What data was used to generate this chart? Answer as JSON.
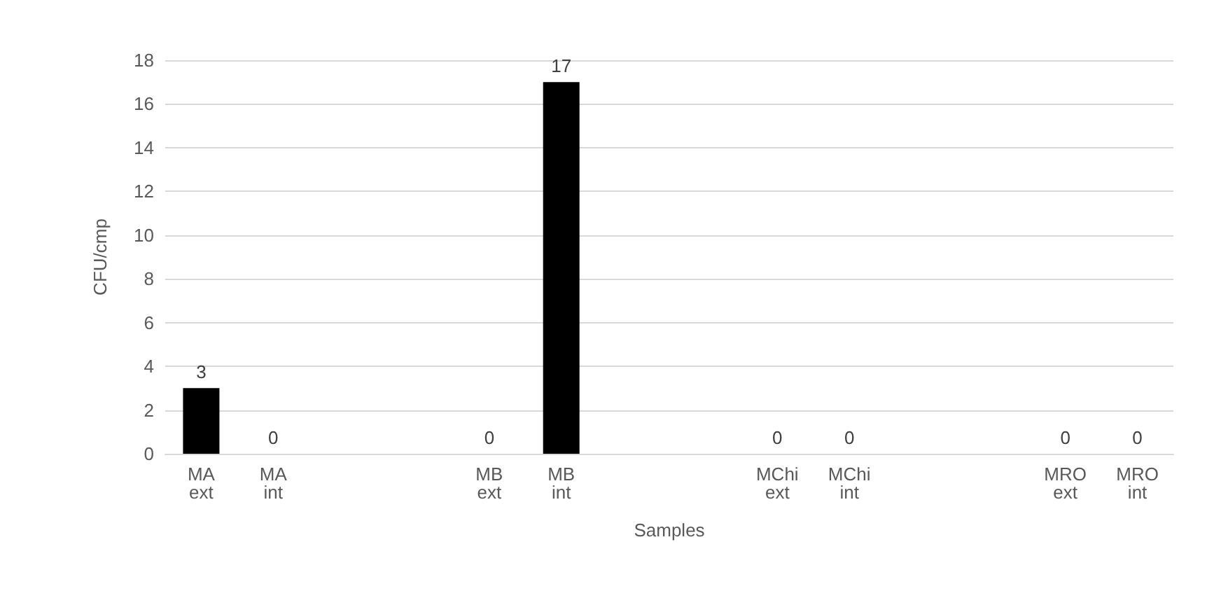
{
  "chart_data": {
    "type": "bar",
    "xlabel": "Samples",
    "ylabel": "CFU/cmp",
    "categories": [
      "MA ext",
      "MA int",
      null,
      null,
      "MB ext",
      "MB int",
      null,
      null,
      "MChi ext",
      "MChi int",
      null,
      null,
      "MRO ext",
      "MRO int"
    ],
    "values": [
      3,
      0,
      null,
      null,
      0,
      17,
      null,
      null,
      0,
      0,
      null,
      null,
      0,
      0
    ],
    "color": "#000000",
    "ylim": [
      0,
      18
    ],
    "yticks": [
      0,
      2,
      4,
      6,
      8,
      10,
      12,
      14,
      16,
      18
    ],
    "grid": "y",
    "data_labels": true
  }
}
